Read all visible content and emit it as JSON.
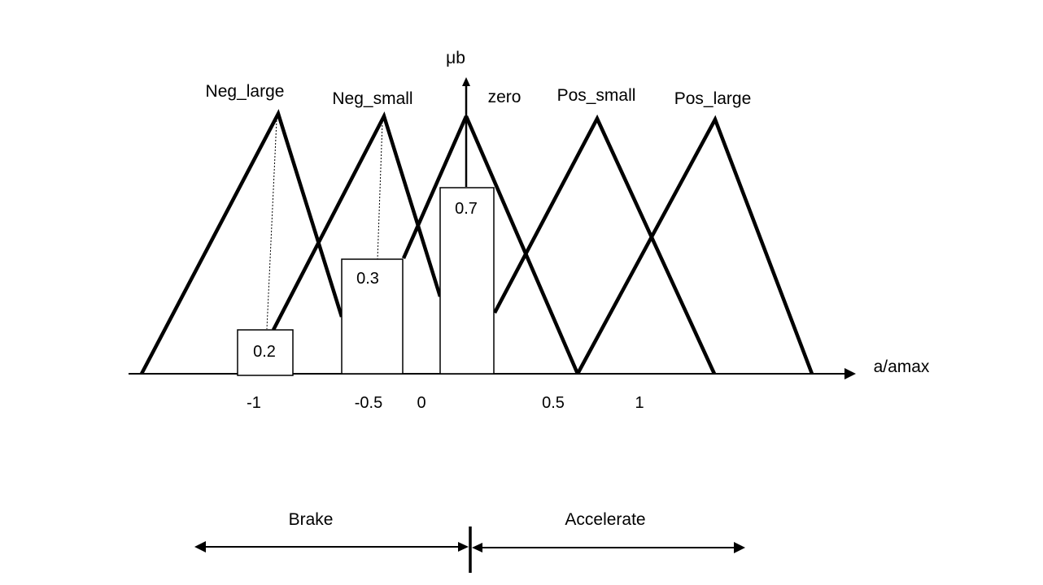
{
  "axes": {
    "y_label": "μb",
    "x_label": "a/amax",
    "ticks": [
      "-1",
      "-0.5",
      "0",
      "0.5",
      "1"
    ]
  },
  "membership_functions": [
    {
      "label": "Neg_large"
    },
    {
      "label": "Neg_small"
    },
    {
      "label": "zero"
    },
    {
      "label": "Pos_small"
    },
    {
      "label": "Pos_large"
    }
  ],
  "bars": [
    {
      "value": "0.2"
    },
    {
      "value": "0.3"
    },
    {
      "value": "0.7"
    }
  ],
  "regions": {
    "brake": "Brake",
    "accelerate": "Accelerate"
  },
  "colors": {
    "line": "#000000",
    "background": "#ffffff"
  }
}
